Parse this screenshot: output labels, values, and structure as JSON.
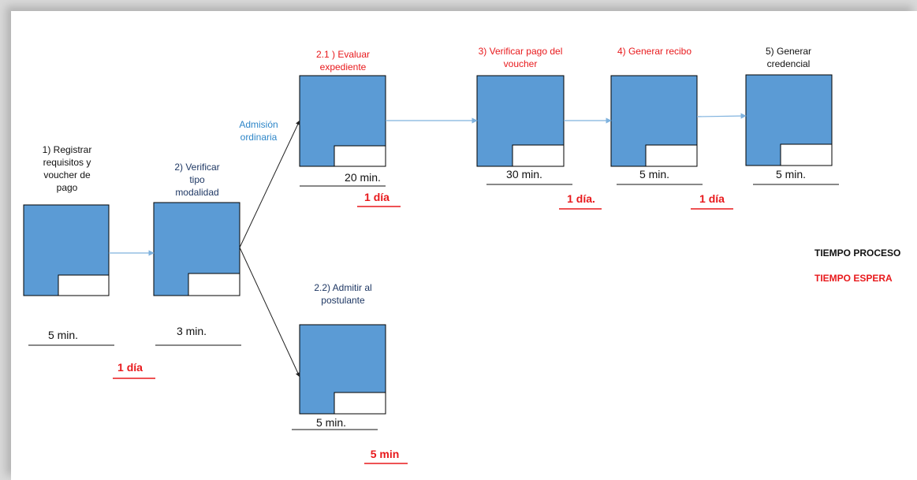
{
  "steps": {
    "s1": {
      "label": "1) Registrar\nrequisitos y\nvoucher de\npago",
      "time": "5 min.",
      "wait": "1 día"
    },
    "s2": {
      "label": "2) Verificar\ntipo\nmodalidad",
      "time": "3 min."
    },
    "s21": {
      "label": "2.1 ) Evaluar\nexpediente",
      "time": "20 min.",
      "wait": "1 día"
    },
    "s22": {
      "label": "2.2) Admitir al\npostulante",
      "time": "5 min.",
      "wait": "5 min"
    },
    "s3": {
      "label": "3) Verificar pago del\nvoucher",
      "time": "30 min.",
      "wait": "1 día."
    },
    "s4": {
      "label": "4) Generar recibo",
      "time": "5 min.",
      "wait": "1 día"
    },
    "s5": {
      "label": "5) Generar\ncredencial",
      "time": "5 min."
    }
  },
  "branch_label": "Admisión\nordinaria",
  "legend": {
    "process": "TIEMPO PROCESO",
    "wait": "TIEMPO ESPERA"
  },
  "colors": {
    "box_fill": "#5b9bd5",
    "process": "#111111",
    "wait": "#e8191c",
    "arrow_blue": "#7fb2de"
  }
}
